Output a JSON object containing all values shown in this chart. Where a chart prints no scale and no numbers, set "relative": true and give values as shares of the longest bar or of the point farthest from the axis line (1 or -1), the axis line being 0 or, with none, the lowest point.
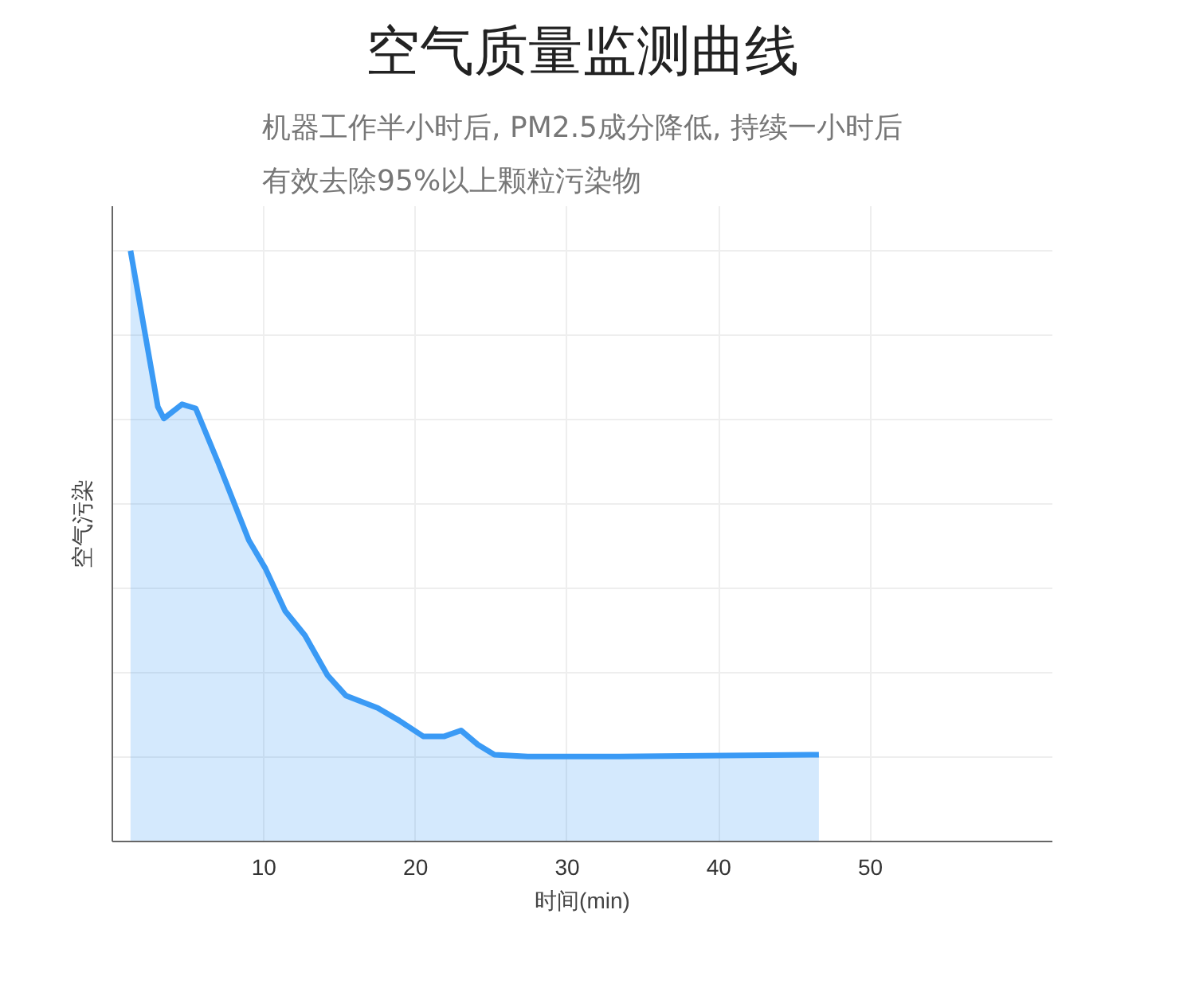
{
  "chart_data": {
    "type": "area",
    "title": "空气质量监测曲线",
    "subtitle": "机器工作半小时后, PM2.5成分降低, 持续一小时后有效去除95%以上颗粒污染物",
    "xlabel": "时间(min)",
    "ylabel": "空气污染",
    "relative": true,
    "grid": true,
    "xlim": [
      0,
      62
    ],
    "xticks": [
      10,
      20,
      30,
      40,
      50
    ],
    "series": [
      {
        "color": "#3a9af5",
        "x": [
          1.2,
          2.6,
          3.0,
          3.4,
          4.6,
          5.5,
          7.0,
          9.0,
          10.1,
          11.4,
          12.7,
          14.2,
          15.4,
          17.5,
          18.9,
          20.5,
          21.9,
          23.0,
          24.1,
          25.2,
          27.4,
          33.4,
          46.6
        ],
        "values": [
          1.0,
          0.795,
          0.736,
          0.716,
          0.74,
          0.733,
          0.64,
          0.51,
          0.462,
          0.39,
          0.349,
          0.281,
          0.247,
          0.226,
          0.205,
          0.178,
          0.178,
          0.188,
          0.164,
          0.147,
          0.144,
          0.144,
          0.147
        ]
      }
    ]
  }
}
